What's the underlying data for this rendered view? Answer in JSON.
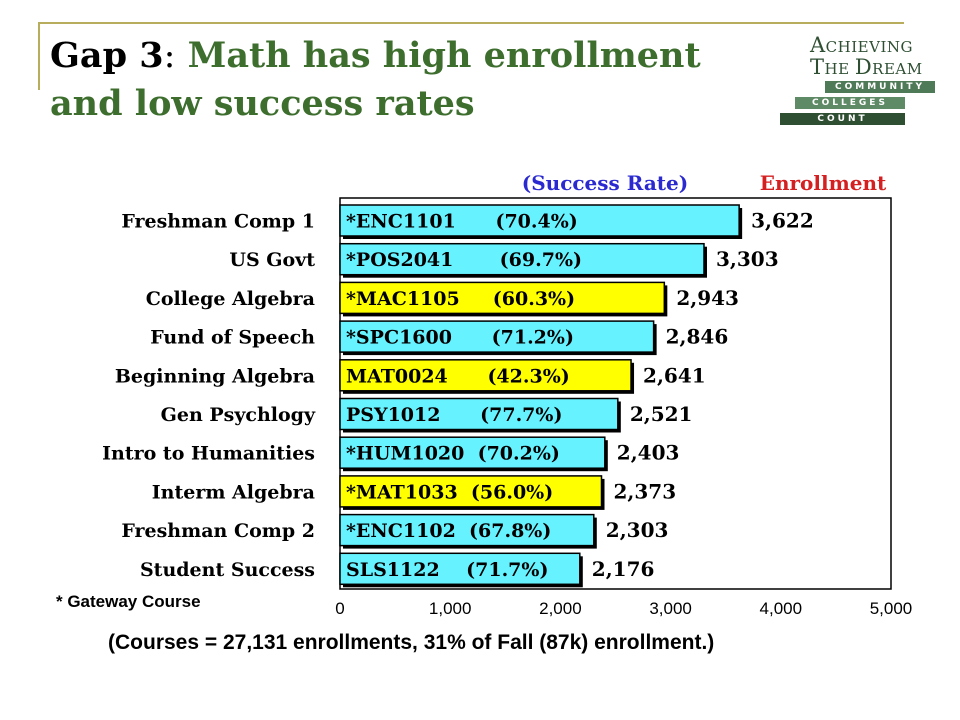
{
  "slide": {
    "title_gap": "Gap 3",
    "title_colon": ":",
    "title_line1": " Math has high enrollment",
    "title_line2": "and low success rates",
    "gateway_note": "* Gateway Course",
    "footnote": "(Courses = 27,131 enrollments, 31% of Fall (87k) enrollment.)"
  },
  "logo": {
    "achieving_cap": "A",
    "achieving_rest": "CHIEVING",
    "dream_cap": "T",
    "dream_rest": "HE ",
    "dream_cap2": "D",
    "dream_rest2": "REAM",
    "bar1": "COMMUNITY",
    "bar2": "COLLEGES",
    "bar3": "COUNT",
    "colors": {
      "bar1": "#4e7a57",
      "bar2": "#5f8a66",
      "bar3": "#2f4f33"
    }
  },
  "chart_data": {
    "type": "bar",
    "orientation": "horizontal",
    "header_left": "(Success Rate)",
    "header_right": "Enrollment",
    "header_colors": {
      "left": "#2a2ad0",
      "right": "#d42020"
    },
    "xlim": [
      0,
      5000
    ],
    "xticks": [
      0,
      1000,
      2000,
      3000,
      4000,
      5000
    ],
    "xtick_labels": [
      "0",
      "1,000",
      "2,000",
      "3,000",
      "4,000",
      "5,000"
    ],
    "colors": {
      "cyan": "#66f2ff",
      "yellow": "#ffff00"
    },
    "bars": [
      {
        "category": "Freshman Comp 1",
        "label": "*ENC1101      (70.4%)",
        "value": 3622,
        "value_label": "3,622",
        "color": "cyan"
      },
      {
        "category": "US Govt",
        "label": "*POS2041       (69.7%)",
        "value": 3303,
        "value_label": "3,303",
        "color": "cyan"
      },
      {
        "category": "College Algebra",
        "label": "*MAC1105     (60.3%)",
        "value": 2943,
        "value_label": "2,943",
        "color": "yellow"
      },
      {
        "category": "Fund of Speech",
        "label": "*SPC1600      (71.2%)",
        "value": 2846,
        "value_label": "2,846",
        "color": "cyan"
      },
      {
        "category": "Beginning Algebra",
        "label": "MAT0024      (42.3%)",
        "value": 2641,
        "value_label": "2,641",
        "color": "yellow"
      },
      {
        "category": "Gen Psychlogy",
        "label": "PSY1012      (77.7%)",
        "value": 2521,
        "value_label": "2,521",
        "color": "cyan"
      },
      {
        "category": "Intro to Humanities",
        "label": "*HUM1020  (70.2%)",
        "value": 2403,
        "value_label": "2,403",
        "color": "cyan"
      },
      {
        "category": "Interm Algebra",
        "label": "*MAT1033  (56.0%)",
        "value": 2373,
        "value_label": "2,373",
        "color": "yellow"
      },
      {
        "category": "Freshman Comp 2",
        "label": "*ENC1102  (67.8%)",
        "value": 2303,
        "value_label": "2,303",
        "color": "cyan"
      },
      {
        "category": "Student Success",
        "label": "SLS1122    (71.7%)",
        "value": 2176,
        "value_label": "2,176",
        "color": "cyan"
      }
    ]
  }
}
